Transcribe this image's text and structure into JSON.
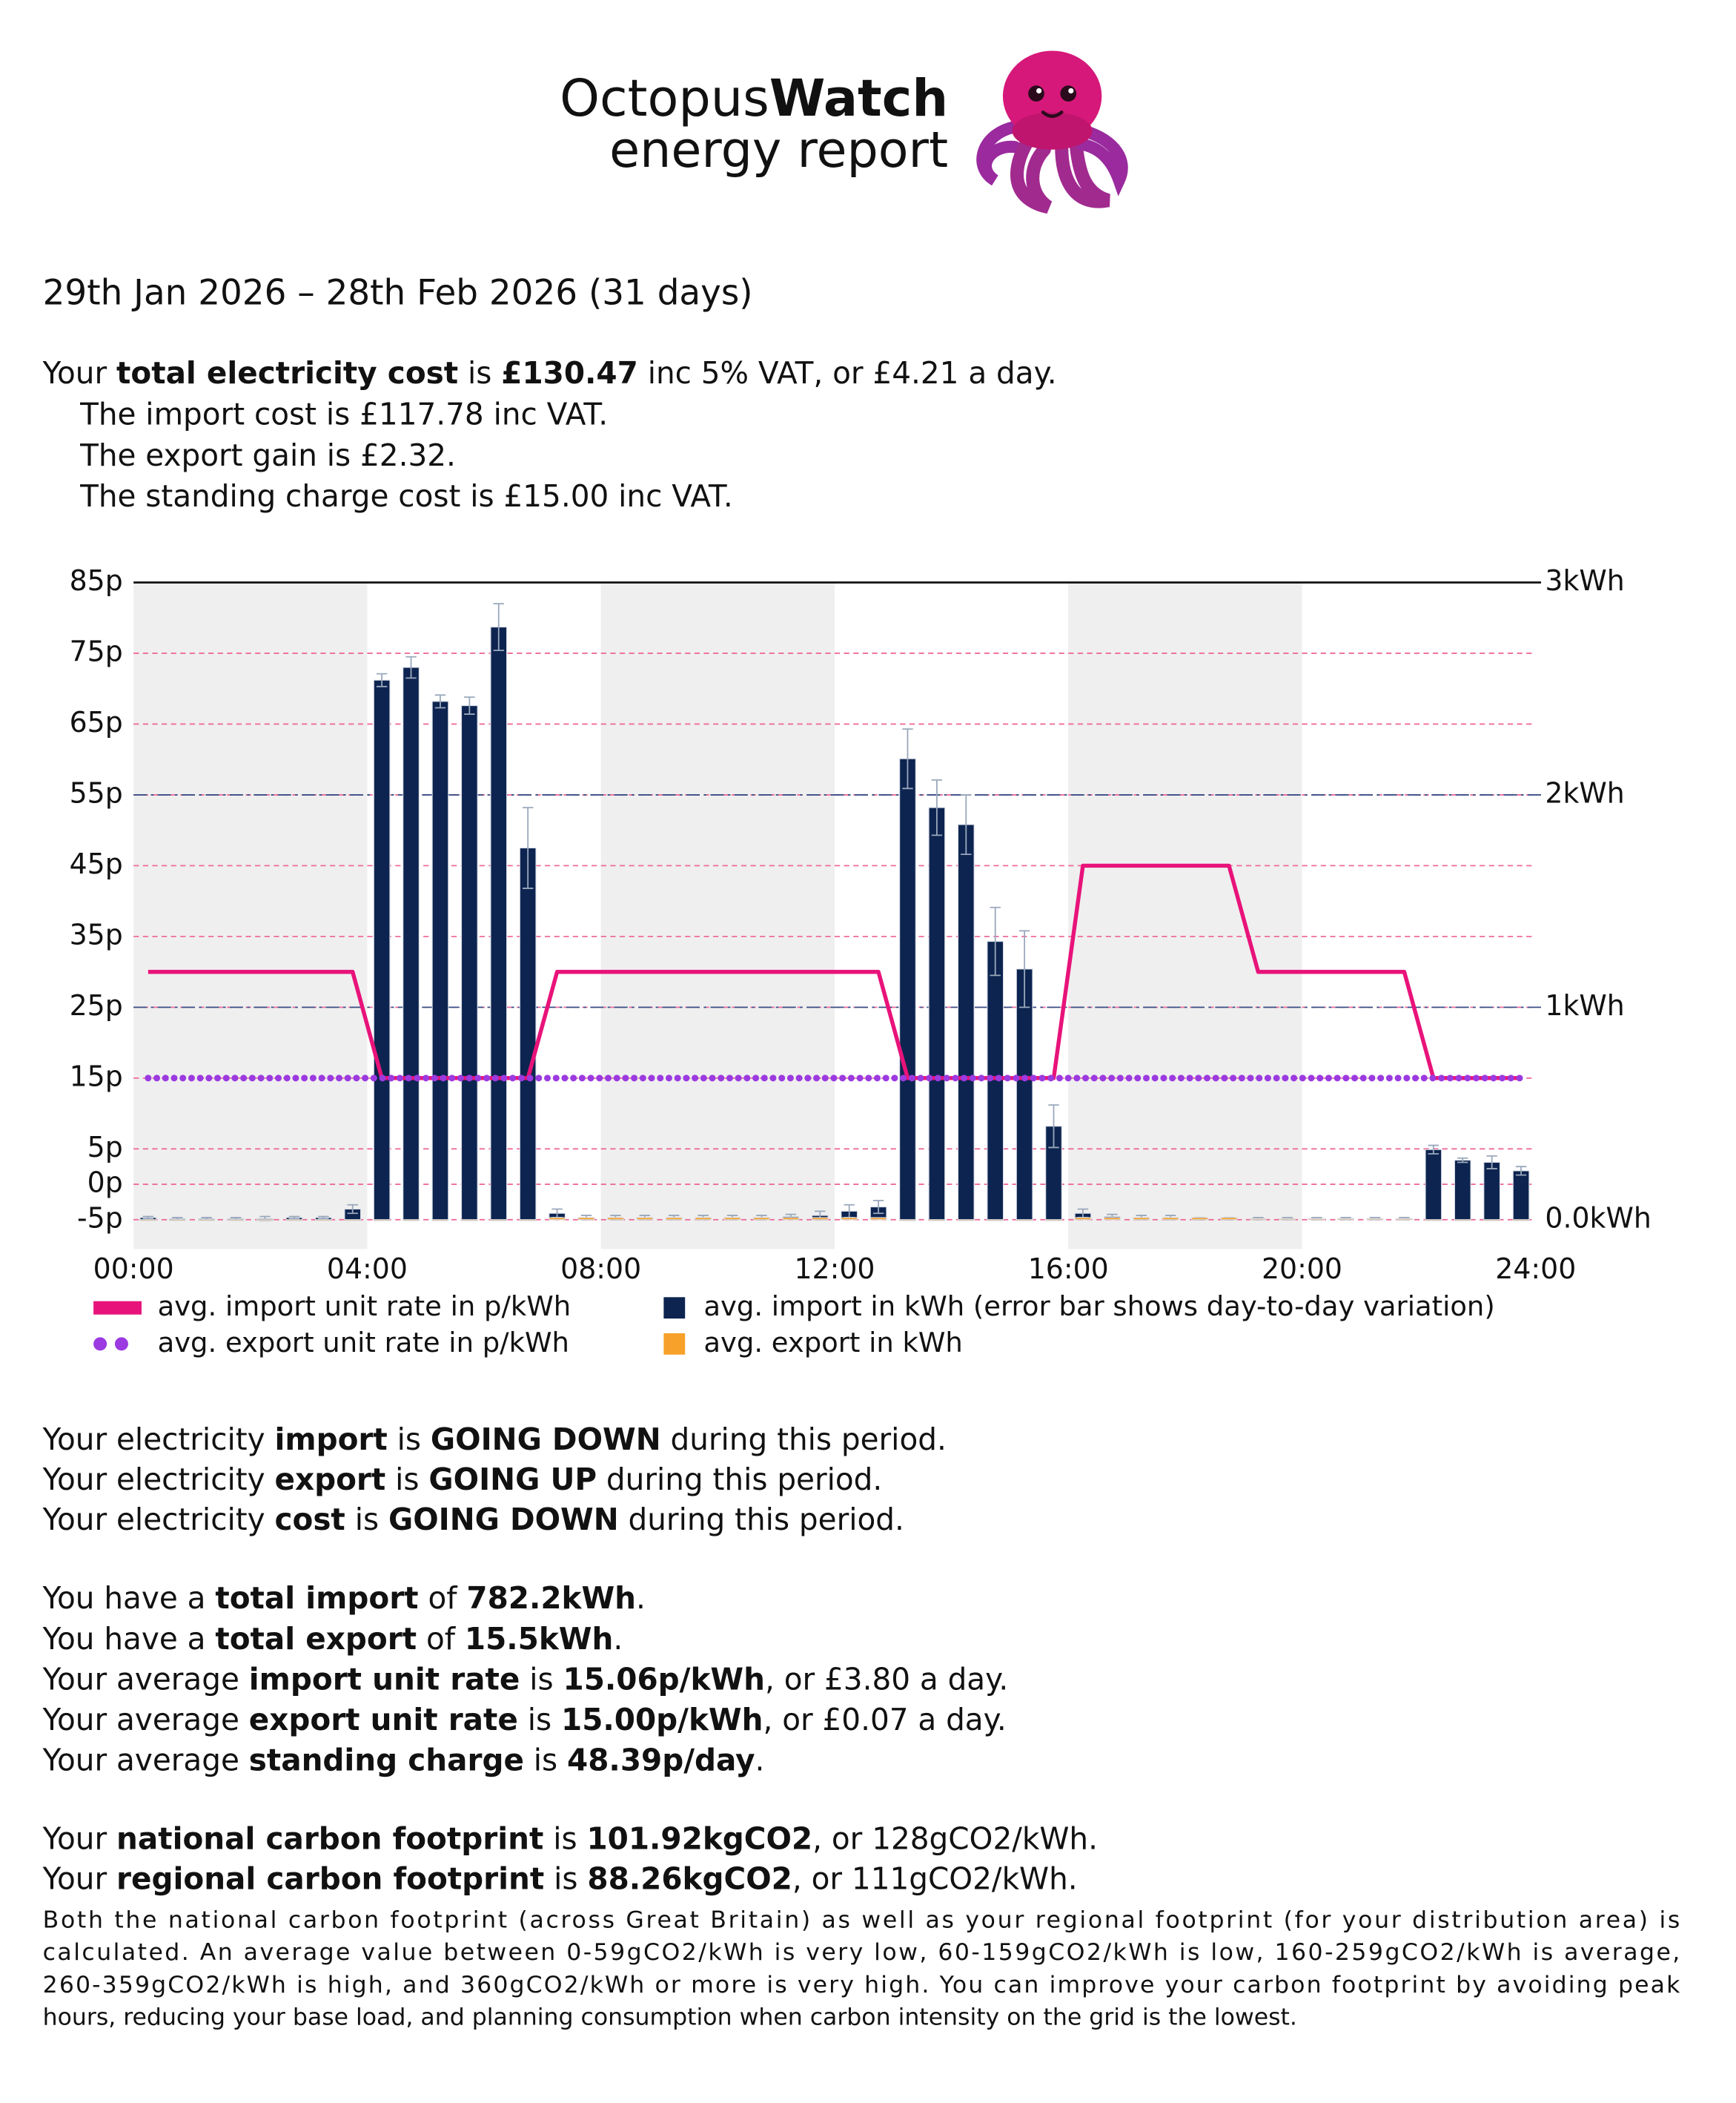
{
  "header": {
    "brand": [
      "Octopus",
      "Watch"
    ],
    "subtitle": "energy report"
  },
  "period": "29th Jan 2026 – 28th Feb 2026 (31 days)",
  "cost": [
    [
      "Your ",
      "total electricity cost",
      " is ",
      "£130.47",
      " inc 5% VAT, or £4.21 a day."
    ],
    [
      "The import cost is £117.78 inc VAT."
    ],
    [
      "The export gain is £2.32."
    ],
    [
      "The standing charge cost is £15.00 inc VAT."
    ]
  ],
  "chart_data": {
    "type": "combo",
    "x": [
      0.25,
      0.75,
      1.25,
      1.75,
      2.25,
      2.75,
      3.25,
      3.75,
      4.25,
      4.75,
      5.25,
      5.75,
      6.25,
      6.75,
      7.25,
      7.75,
      8.25,
      8.75,
      9.25,
      9.75,
      10.25,
      10.75,
      11.25,
      11.75,
      12.25,
      12.75,
      13.25,
      13.75,
      14.25,
      14.75,
      15.25,
      15.75,
      16.25,
      16.75,
      17.25,
      17.75,
      18.25,
      18.75,
      19.25,
      19.75,
      20.25,
      20.75,
      21.25,
      21.75,
      22.25,
      22.75,
      23.25,
      23.75
    ],
    "xlim": [
      0,
      24
    ],
    "xticks": [
      {
        "value": 0,
        "label": "00:00"
      },
      {
        "value": 4,
        "label": "04:00"
      },
      {
        "value": 8,
        "label": "08:00"
      },
      {
        "value": 12,
        "label": "12:00"
      },
      {
        "value": 16,
        "label": "16:00"
      },
      {
        "value": 20,
        "label": "20:00"
      },
      {
        "value": 24,
        "label": "24:00"
      }
    ],
    "ylim": [
      -5,
      85
    ],
    "yticks": [
      {
        "value": 85,
        "label": "85p"
      },
      {
        "value": 75,
        "label": "75p"
      },
      {
        "value": 65,
        "label": "65p"
      },
      {
        "value": 55,
        "label": "55p"
      },
      {
        "value": 45,
        "label": "45p"
      },
      {
        "value": 35,
        "label": "35p"
      },
      {
        "value": 25,
        "label": "25p"
      },
      {
        "value": 15,
        "label": "15p"
      },
      {
        "value": 5,
        "label": "5p"
      },
      {
        "value": 0,
        "label": "0p"
      },
      {
        "value": -5,
        "label": "-5p"
      }
    ],
    "y2lim": [
      0,
      3
    ],
    "y2ticks": [
      {
        "value": 3,
        "label": "3kWh"
      },
      {
        "value": 2,
        "label": "2kWh"
      },
      {
        "value": 1,
        "label": "1kWh"
      },
      {
        "value": 0,
        "label": "0.0kWh"
      }
    ],
    "grid": true,
    "series": [
      {
        "name": "avg. import unit rate in p/kWh",
        "kind": "line",
        "color": "#e8137a",
        "values": [
          30,
          30,
          30,
          30,
          30,
          30,
          30,
          30,
          15,
          15,
          15,
          15,
          15,
          15,
          30,
          30,
          30,
          30,
          30,
          30,
          30,
          30,
          30,
          30,
          30,
          30,
          15,
          15,
          15,
          15,
          15,
          15,
          45,
          45,
          45,
          45,
          45,
          45,
          30,
          30,
          30,
          30,
          30,
          30,
          15,
          15,
          15,
          15
        ]
      },
      {
        "name": "avg. export unit rate in p/kWh",
        "kind": "line",
        "dotted": true,
        "color": "#9b3ae0",
        "values": [
          15,
          15,
          15,
          15,
          15,
          15,
          15,
          15,
          15,
          15,
          15,
          15,
          15,
          15,
          15,
          15,
          15,
          15,
          15,
          15,
          15,
          15,
          15,
          15,
          15,
          15,
          15,
          15,
          15,
          15,
          15,
          15,
          15,
          15,
          15,
          15,
          15,
          15,
          15,
          15,
          15,
          15,
          15,
          15,
          15,
          15,
          15,
          15
        ]
      },
      {
        "name": "avg. import in kWh (error bar shows day-to-day variation)",
        "kind": "bar",
        "axis": "y2",
        "color": "#0d2450",
        "values": [
          0.01,
          0.005,
          0.005,
          0.005,
          0.005,
          0.01,
          0.01,
          0.05,
          2.54,
          2.6,
          2.44,
          2.42,
          2.79,
          1.75,
          0.03,
          0.01,
          0.01,
          0.01,
          0.01,
          0.01,
          0.01,
          0.01,
          0.015,
          0.02,
          0.04,
          0.06,
          2.17,
          1.94,
          1.86,
          1.31,
          1.18,
          0.44,
          0.03,
          0.015,
          0.01,
          0.01,
          0.005,
          0.005,
          0.005,
          0.005,
          0.005,
          0.005,
          0.005,
          0.005,
          0.33,
          0.28,
          0.27,
          0.23
        ],
        "errors": [
          0.005,
          0.005,
          0.005,
          0.005,
          0.01,
          0.005,
          0.005,
          0.02,
          0.03,
          0.05,
          0.03,
          0.04,
          0.11,
          0.19,
          0.02,
          0.01,
          0.01,
          0.01,
          0.01,
          0.01,
          0.01,
          0.01,
          0.01,
          0.02,
          0.03,
          0.03,
          0.14,
          0.13,
          0.14,
          0.16,
          0.18,
          0.1,
          0.02,
          0.01,
          0.01,
          0.01,
          0.005,
          0.005,
          0.005,
          0.005,
          0.005,
          0.005,
          0.005,
          0.005,
          0.02,
          0.01,
          0.03,
          0.02
        ]
      },
      {
        "name": "avg. export in kWh",
        "kind": "bar",
        "axis": "y2",
        "color": "#f7a12a",
        "values": [
          0,
          0,
          0,
          0,
          0,
          0,
          0,
          0,
          0,
          0,
          0,
          0,
          0,
          0,
          0.01,
          0.01,
          0.01,
          0.01,
          0.01,
          0.01,
          0.01,
          0.01,
          0.01,
          0.01,
          0.01,
          0.01,
          0,
          0,
          0,
          0,
          0,
          0,
          0.01,
          0.01,
          0.01,
          0.01,
          0.01,
          0.01,
          0.005,
          0.005,
          0.005,
          0.005,
          0.005,
          0.005,
          0,
          0,
          0,
          0
        ]
      }
    ]
  },
  "trends": [
    [
      "Your electricity ",
      "import",
      " is ",
      "GOING DOWN",
      " during this period."
    ],
    [
      "Your electricity ",
      "export",
      " is ",
      "GOING UP",
      " during this period."
    ],
    [
      "Your electricity ",
      "cost",
      " is ",
      "GOING DOWN",
      " during this period."
    ]
  ],
  "totals": [
    [
      "You have a ",
      "total import",
      " of ",
      "782.2kWh",
      "."
    ],
    [
      "You have a ",
      "total export",
      " of ",
      "15.5kWh",
      "."
    ],
    [
      "Your average ",
      "import unit rate",
      " is ",
      "15.06p/kWh",
      ", or £3.80 a day."
    ],
    [
      "Your average ",
      "export unit rate",
      " is ",
      "15.00p/kWh",
      ", or £0.07 a day."
    ],
    [
      "Your average ",
      "standing charge",
      " is ",
      "48.39p/day",
      "."
    ]
  ],
  "carbon": {
    "lines": [
      [
        "Your ",
        "national carbon footprint",
        " is ",
        "101.92kgCO2",
        ", or 128gCO2/kWh."
      ],
      [
        "Your ",
        "regional carbon footprint",
        " is ",
        "88.26kgCO2",
        ", or 111gCO2/kWh."
      ]
    ],
    "note": [
      "Both the national carbon footprint (across Great Britain) as well as your regional footprint (for your distribution area) is",
      "calculated. An average value between 0-59gCO2/kWh is very low, 60-159gCO2/kWh is low, 160-259gCO2/kWh is average,",
      "260-359gCO2/kWh is high, and 360gCO2/kWh or more is very high. You can improve your carbon footprint by avoiding peak",
      "hours, reducing your base load, and planning consumption when carbon intensity on the grid is the lowest."
    ]
  }
}
